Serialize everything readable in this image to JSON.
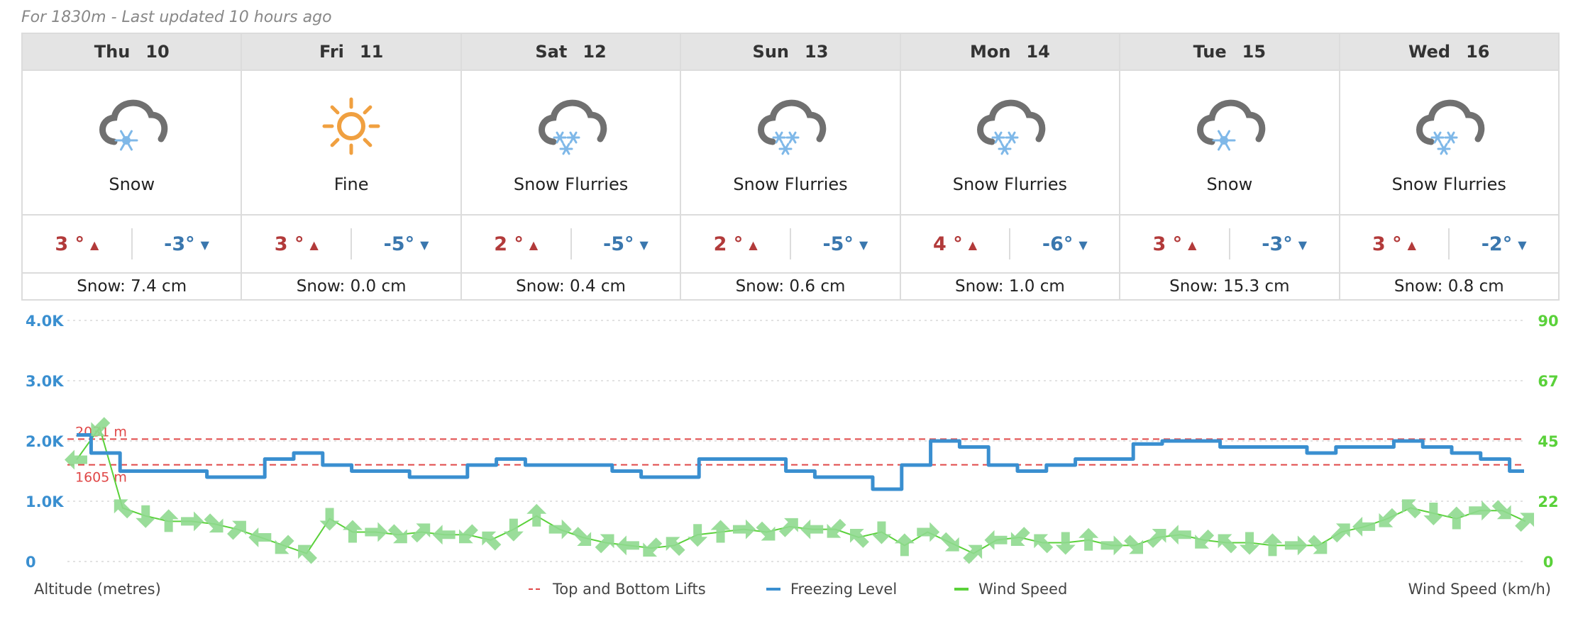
{
  "subtitle": "For 1830m - Last updated 10 hours ago",
  "days": [
    {
      "dow": "Thu",
      "date": "10",
      "icon": "snow-icon",
      "condition": "Snow",
      "hi": "3 °",
      "lo": "-3°",
      "snow": "Snow: 7.4 cm"
    },
    {
      "dow": "Fri",
      "date": "11",
      "icon": "sun-icon",
      "condition": "Fine",
      "hi": "3 °",
      "lo": "-5°",
      "snow": "Snow: 0.0 cm"
    },
    {
      "dow": "Sat",
      "date": "12",
      "icon": "snow-flurries-icon",
      "condition": "Snow Flurries",
      "hi": "2 °",
      "lo": "-5°",
      "snow": "Snow: 0.4 cm"
    },
    {
      "dow": "Sun",
      "date": "13",
      "icon": "snow-flurries-icon",
      "condition": "Snow Flurries",
      "hi": "2 °",
      "lo": "-5°",
      "snow": "Snow: 0.6 cm"
    },
    {
      "dow": "Mon",
      "date": "14",
      "icon": "snow-flurries-icon",
      "condition": "Snow Flurries",
      "hi": "4 °",
      "lo": "-6°",
      "snow": "Snow: 1.0 cm"
    },
    {
      "dow": "Tue",
      "date": "15",
      "icon": "snow-icon",
      "condition": "Snow",
      "hi": "3 °",
      "lo": "-3°",
      "snow": "Snow: 15.3 cm"
    },
    {
      "dow": "Wed",
      "date": "16",
      "icon": "snow-flurries-icon",
      "condition": "Snow Flurries",
      "hi": "3 °",
      "lo": "-2°",
      "snow": "Snow: 0.8 cm"
    }
  ],
  "colors": {
    "high": "#b23a3a",
    "low": "#3a77ae",
    "freezing": "#3a8fd0",
    "wind": "#5ad13a",
    "wind_arrow": "#8fd98f",
    "lifts": "#e04848",
    "sun": "#f0a040",
    "cloud": "#707070",
    "flake": "#7fb8e8"
  },
  "chart_data": {
    "type": "line",
    "x_unit": "3-hour forecast steps from Thu 10",
    "y_left": {
      "label": "Altitude (metres)",
      "ticks": [
        "0",
        "1.0K",
        "2.0K",
        "3.0K",
        "4.0K"
      ],
      "range": [
        0,
        4000
      ]
    },
    "y_right": {
      "label": "Wind Speed (km/h)",
      "ticks": [
        "0",
        "22",
        "45",
        "67",
        "90"
      ],
      "range": [
        0,
        90
      ]
    },
    "reference_lines": [
      {
        "name": "Top and Bottom Lifts",
        "value": 2031,
        "label": "2031 m"
      },
      {
        "name": "Top and Bottom Lifts",
        "value": 1605,
        "label": "1605 m"
      }
    ],
    "series": [
      {
        "name": "Freezing Level",
        "axis": "left",
        "values": [
          2100,
          1800,
          1500,
          1500,
          1500,
          1400,
          1400,
          1700,
          1800,
          1600,
          1500,
          1500,
          1400,
          1400,
          1600,
          1700,
          1600,
          1600,
          1600,
          1500,
          1400,
          1400,
          1700,
          1700,
          1700,
          1500,
          1400,
          1400,
          1200,
          1600,
          2000,
          1900,
          1600,
          1500,
          1600,
          1700,
          1700,
          1950,
          2000,
          2000,
          1900,
          1900,
          1900,
          1800,
          1900,
          1900,
          2000,
          1900,
          1800,
          1700,
          1500
        ]
      },
      {
        "name": "Wind Speed",
        "axis": "right",
        "values": [
          38,
          50,
          20,
          17,
          15,
          15,
          14,
          12,
          9,
          6,
          3,
          16,
          11,
          11,
          10,
          11,
          10,
          10,
          8,
          12,
          17,
          12,
          9,
          7,
          6,
          5,
          6,
          10,
          11,
          12,
          11,
          13,
          12,
          12,
          9,
          11,
          6,
          11,
          7,
          3,
          8,
          9,
          7,
          7,
          8,
          6,
          6,
          9,
          10,
          8,
          7,
          7,
          6,
          6,
          6,
          11,
          13,
          16,
          20,
          18,
          16,
          19,
          19,
          15
        ]
      }
    ],
    "legend": {
      "position": "bottom-center",
      "items": [
        "Top and Bottom Lifts",
        "Freezing Level",
        "Wind Speed"
      ]
    },
    "grid": "horizontal dotted"
  }
}
